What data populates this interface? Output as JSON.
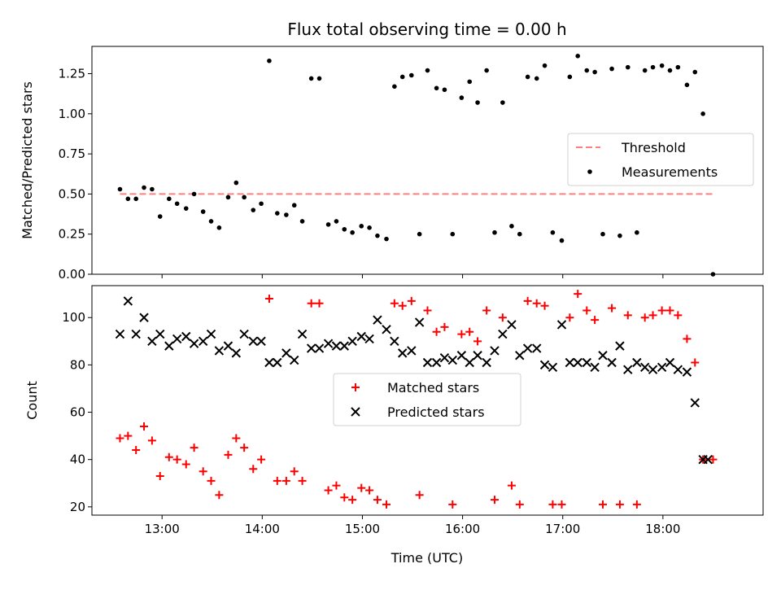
{
  "chart_data": [
    {
      "type": "scatter",
      "title": "Flux total observing time = 0.00 h",
      "xlabel": "",
      "ylabel": "Matched/Predicted stars",
      "xlim": [
        12.3,
        19.0
      ],
      "ylim": [
        0.0,
        1.42
      ],
      "yticks": [
        0.0,
        0.25,
        0.5,
        0.75,
        1.0,
        1.25
      ],
      "ytick_labels": [
        "0.00",
        "0.25",
        "0.50",
        "0.75",
        "1.00",
        "1.25"
      ],
      "xticks": [
        13,
        14,
        15,
        16,
        17,
        18
      ],
      "grid": false,
      "legend_position": "center-right",
      "series": [
        {
          "name": "Threshold",
          "kind": "dashed-line",
          "color": "#ff7f7f",
          "points": [
            [
              12.58,
              0.5
            ],
            [
              18.5,
              0.5
            ]
          ]
        },
        {
          "name": "Measurements",
          "kind": "dot",
          "color": "#000000",
          "points": [
            [
              12.58,
              0.53
            ],
            [
              12.66,
              0.47
            ],
            [
              12.74,
              0.47
            ],
            [
              12.82,
              0.54
            ],
            [
              12.9,
              0.53
            ],
            [
              12.98,
              0.36
            ],
            [
              13.07,
              0.47
            ],
            [
              13.15,
              0.44
            ],
            [
              13.24,
              0.41
            ],
            [
              13.32,
              0.5
            ],
            [
              13.41,
              0.39
            ],
            [
              13.49,
              0.33
            ],
            [
              13.57,
              0.29
            ],
            [
              13.66,
              0.48
            ],
            [
              13.74,
              0.57
            ],
            [
              13.82,
              0.48
            ],
            [
              13.91,
              0.4
            ],
            [
              13.99,
              0.44
            ],
            [
              14.07,
              1.33
            ],
            [
              14.15,
              0.38
            ],
            [
              14.24,
              0.37
            ],
            [
              14.32,
              0.43
            ],
            [
              14.4,
              0.33
            ],
            [
              14.49,
              1.22
            ],
            [
              14.57,
              1.22
            ],
            [
              14.66,
              0.31
            ],
            [
              14.74,
              0.33
            ],
            [
              14.82,
              0.28
            ],
            [
              14.9,
              0.26
            ],
            [
              14.99,
              0.3
            ],
            [
              15.07,
              0.29
            ],
            [
              15.15,
              0.24
            ],
            [
              15.24,
              0.22
            ],
            [
              15.32,
              1.17
            ],
            [
              15.4,
              1.23
            ],
            [
              15.49,
              1.24
            ],
            [
              15.57,
              0.25
            ],
            [
              15.65,
              1.27
            ],
            [
              15.74,
              1.16
            ],
            [
              15.82,
              1.15
            ],
            [
              15.9,
              0.25
            ],
            [
              15.99,
              1.1
            ],
            [
              16.07,
              1.2
            ],
            [
              16.15,
              1.07
            ],
            [
              16.24,
              1.27
            ],
            [
              16.32,
              0.26
            ],
            [
              16.4,
              1.07
            ],
            [
              16.49,
              0.3
            ],
            [
              16.57,
              0.25
            ],
            [
              16.65,
              1.23
            ],
            [
              16.74,
              1.22
            ],
            [
              16.82,
              1.3
            ],
            [
              16.9,
              0.26
            ],
            [
              16.99,
              0.21
            ],
            [
              17.07,
              1.23
            ],
            [
              17.15,
              1.36
            ],
            [
              17.24,
              1.27
            ],
            [
              17.32,
              1.26
            ],
            [
              17.4,
              0.25
            ],
            [
              17.49,
              1.28
            ],
            [
              17.57,
              0.24
            ],
            [
              17.65,
              1.29
            ],
            [
              17.74,
              0.26
            ],
            [
              17.82,
              1.27
            ],
            [
              17.9,
              1.29
            ],
            [
              17.99,
              1.3
            ],
            [
              18.07,
              1.27
            ],
            [
              18.15,
              1.29
            ],
            [
              18.24,
              1.18
            ],
            [
              18.32,
              1.26
            ],
            [
              18.4,
              1.0
            ],
            [
              18.5,
              0.0
            ]
          ]
        }
      ]
    },
    {
      "type": "scatter",
      "title": "",
      "xlabel": "Time (UTC)",
      "ylabel": "Count",
      "xlim": [
        12.3,
        19.0
      ],
      "ylim": [
        16.5,
        113.5
      ],
      "yticks": [
        20,
        40,
        60,
        80,
        100
      ],
      "ytick_labels": [
        "20",
        "40",
        "60",
        "80",
        "100"
      ],
      "xticks": [
        13,
        14,
        15,
        16,
        17,
        18
      ],
      "xtick_labels": [
        "13:00",
        "14:00",
        "15:00",
        "16:00",
        "17:00",
        "18:00"
      ],
      "grid": false,
      "legend_position": "center",
      "series": [
        {
          "name": "Matched stars",
          "kind": "plus",
          "color": "#ff0000",
          "points": [
            [
              12.58,
              49
            ],
            [
              12.66,
              50
            ],
            [
              12.74,
              44
            ],
            [
              12.82,
              54
            ],
            [
              12.9,
              48
            ],
            [
              12.98,
              33
            ],
            [
              13.07,
              41
            ],
            [
              13.15,
              40
            ],
            [
              13.24,
              38
            ],
            [
              13.32,
              45
            ],
            [
              13.41,
              35
            ],
            [
              13.49,
              31
            ],
            [
              13.57,
              25
            ],
            [
              13.66,
              42
            ],
            [
              13.74,
              49
            ],
            [
              13.82,
              45
            ],
            [
              13.91,
              36
            ],
            [
              13.99,
              40
            ],
            [
              14.07,
              108
            ],
            [
              14.15,
              31
            ],
            [
              14.24,
              31
            ],
            [
              14.32,
              35
            ],
            [
              14.4,
              31
            ],
            [
              14.49,
              106
            ],
            [
              14.57,
              106
            ],
            [
              14.66,
              27
            ],
            [
              14.74,
              29
            ],
            [
              14.82,
              24
            ],
            [
              14.9,
              23
            ],
            [
              14.99,
              28
            ],
            [
              15.07,
              27
            ],
            [
              15.15,
              23
            ],
            [
              15.24,
              21
            ],
            [
              15.32,
              106
            ],
            [
              15.4,
              105
            ],
            [
              15.49,
              107
            ],
            [
              15.57,
              25
            ],
            [
              15.65,
              103
            ],
            [
              15.74,
              94
            ],
            [
              15.82,
              96
            ],
            [
              15.9,
              21
            ],
            [
              15.99,
              93
            ],
            [
              16.07,
              94
            ],
            [
              16.15,
              90
            ],
            [
              16.24,
              103
            ],
            [
              16.32,
              23
            ],
            [
              16.4,
              100
            ],
            [
              16.49,
              29
            ],
            [
              16.57,
              21
            ],
            [
              16.65,
              107
            ],
            [
              16.74,
              106
            ],
            [
              16.82,
              105
            ],
            [
              16.9,
              21
            ],
            [
              16.99,
              21
            ],
            [
              17.07,
              100
            ],
            [
              17.15,
              110
            ],
            [
              17.24,
              103
            ],
            [
              17.32,
              99
            ],
            [
              17.4,
              21
            ],
            [
              17.49,
              104
            ],
            [
              17.57,
              21
            ],
            [
              17.65,
              101
            ],
            [
              17.74,
              21
            ],
            [
              17.82,
              100
            ],
            [
              17.9,
              101
            ],
            [
              17.99,
              103
            ],
            [
              18.07,
              103
            ],
            [
              18.15,
              101
            ],
            [
              18.24,
              91
            ],
            [
              18.32,
              81
            ],
            [
              18.4,
              40
            ],
            [
              18.5,
              40
            ]
          ]
        },
        {
          "name": "Predicted stars",
          "kind": "x",
          "color": "#000000",
          "points": [
            [
              12.58,
              93
            ],
            [
              12.66,
              107
            ],
            [
              12.74,
              93
            ],
            [
              12.82,
              100
            ],
            [
              12.9,
              90
            ],
            [
              12.98,
              93
            ],
            [
              13.07,
              88
            ],
            [
              13.15,
              91
            ],
            [
              13.24,
              92
            ],
            [
              13.32,
              89
            ],
            [
              13.41,
              90
            ],
            [
              13.49,
              93
            ],
            [
              13.57,
              86
            ],
            [
              13.66,
              88
            ],
            [
              13.74,
              85
            ],
            [
              13.82,
              93
            ],
            [
              13.91,
              90
            ],
            [
              13.99,
              90
            ],
            [
              14.07,
              81
            ],
            [
              14.15,
              81
            ],
            [
              14.24,
              85
            ],
            [
              14.32,
              82
            ],
            [
              14.4,
              93
            ],
            [
              14.49,
              87
            ],
            [
              14.57,
              87
            ],
            [
              14.66,
              89
            ],
            [
              14.74,
              88
            ],
            [
              14.82,
              88
            ],
            [
              14.9,
              90
            ],
            [
              14.99,
              92
            ],
            [
              15.07,
              91
            ],
            [
              15.15,
              99
            ],
            [
              15.24,
              95
            ],
            [
              15.32,
              90
            ],
            [
              15.4,
              85
            ],
            [
              15.49,
              86
            ],
            [
              15.57,
              98
            ],
            [
              15.65,
              81
            ],
            [
              15.74,
              81
            ],
            [
              15.82,
              83
            ],
            [
              15.9,
              82
            ],
            [
              15.99,
              84
            ],
            [
              16.07,
              81
            ],
            [
              16.15,
              84
            ],
            [
              16.24,
              81
            ],
            [
              16.32,
              86
            ],
            [
              16.4,
              93
            ],
            [
              16.49,
              97
            ],
            [
              16.57,
              84
            ],
            [
              16.65,
              87
            ],
            [
              16.74,
              87
            ],
            [
              16.82,
              80
            ],
            [
              16.9,
              79
            ],
            [
              16.99,
              97
            ],
            [
              17.07,
              81
            ],
            [
              17.15,
              81
            ],
            [
              17.24,
              81
            ],
            [
              17.32,
              79
            ],
            [
              17.4,
              84
            ],
            [
              17.49,
              81
            ],
            [
              17.57,
              88
            ],
            [
              17.65,
              78
            ],
            [
              17.74,
              81
            ],
            [
              17.82,
              79
            ],
            [
              17.9,
              78
            ],
            [
              17.99,
              79
            ],
            [
              18.07,
              81
            ],
            [
              18.15,
              78
            ],
            [
              18.24,
              77
            ],
            [
              18.32,
              64
            ],
            [
              18.4,
              40
            ],
            [
              18.45,
              40
            ]
          ]
        }
      ]
    }
  ]
}
